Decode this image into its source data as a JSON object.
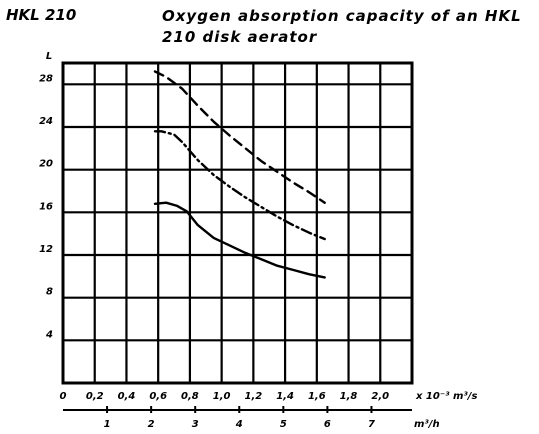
{
  "header": {
    "code": "HKL 210",
    "title": "Oxygen absorption capacity of an HKL 210 disk aerator"
  },
  "chart_data": {
    "type": "line",
    "ylabel": "L",
    "ylim": [
      0,
      30
    ],
    "yticks": [
      4,
      8,
      12,
      16,
      20,
      24,
      28
    ],
    "xlim": [
      0,
      2.2
    ],
    "xticks": [
      0,
      0.2,
      0.4,
      0.6,
      0.8,
      1.0,
      1.2,
      1.4,
      1.6,
      1.8,
      2.0
    ],
    "xtick_labels": [
      "0",
      "0,2",
      "0,4",
      "0,6",
      "0,8",
      "1,0",
      "1,2",
      "1,4",
      "1,6",
      "1,8",
      "2,0"
    ],
    "xunit": "x 10⁻³ m³/s",
    "x2ticks": [
      1,
      2,
      3,
      4,
      5,
      6,
      7
    ],
    "x2unit": "m³/h",
    "grid": true,
    "series": [
      {
        "style": "long-dash",
        "x": [
          0.58,
          0.65,
          0.75,
          0.85,
          0.95,
          1.05,
          1.15,
          1.25,
          1.35,
          1.45,
          1.55,
          1.6,
          1.65
        ],
        "y": [
          29.2,
          28.7,
          27.6,
          26.0,
          24.5,
          23.2,
          22.0,
          20.8,
          19.8,
          18.8,
          17.9,
          17.4,
          16.9
        ]
      },
      {
        "style": "dash-dot",
        "x": [
          0.58,
          0.62,
          0.7,
          0.75,
          0.85,
          0.95,
          1.05,
          1.15,
          1.25,
          1.35,
          1.45,
          1.55,
          1.65
        ],
        "y": [
          23.6,
          23.6,
          23.3,
          22.6,
          20.9,
          19.5,
          18.4,
          17.4,
          16.5,
          15.6,
          14.8,
          14.1,
          13.5
        ]
      },
      {
        "style": "solid",
        "x": [
          0.58,
          0.65,
          0.72,
          0.78,
          0.85,
          0.95,
          1.05,
          1.15,
          1.25,
          1.35,
          1.45,
          1.55,
          1.65
        ],
        "y": [
          16.8,
          16.9,
          16.6,
          16.1,
          14.8,
          13.6,
          12.9,
          12.2,
          11.6,
          11.0,
          10.6,
          10.2,
          9.9
        ]
      }
    ]
  }
}
